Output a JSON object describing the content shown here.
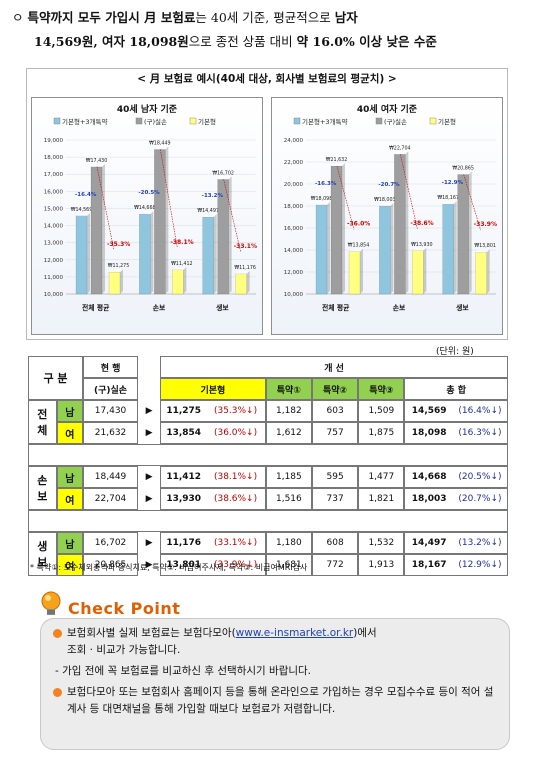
{
  "intro": {
    "bullet": "ㅇ",
    "line1_a": "특약까지 모두 가입시 ",
    "line1_b": "月 보험료",
    "line1_c": "는 40세 기준, 평균적으로 ",
    "line1_d": "남자",
    "line2_a": "14,569원, 여자 18,098원",
    "line2_b": "으로 종전 상품 대비 ",
    "line2_c": "약 16.0% 이상 낮은 수준"
  },
  "chart_section": {
    "title": "< 月 보험료 예시(40세 대상, 회사별 보험료의 평균치) >",
    "legend": [
      "기본형+3개특약",
      "(구)실손",
      "기본형"
    ],
    "colors": {
      "new_full": "#8fc6df",
      "old": "#9e9e9e",
      "basic": "#ffff80"
    }
  },
  "chart_data": [
    {
      "type": "bar",
      "title": "40세 남자 기준",
      "categories": [
        "전체 평균",
        "손보",
        "생보"
      ],
      "series": [
        {
          "name": "기본형+3개특약",
          "values": [
            14569,
            14668,
            14497
          ]
        },
        {
          "name": "(구)실손",
          "values": [
            17430,
            18449,
            16702
          ]
        },
        {
          "name": "기본형",
          "values": [
            11275,
            11412,
            11176
          ]
        }
      ],
      "value_labels": [
        [
          "₩14,569",
          "₩17,430",
          "₩11,275"
        ],
        [
          "₩14,668",
          "₩18,449",
          "₩11,412"
        ],
        [
          "₩14,497",
          "₩16,702",
          "₩11,176"
        ]
      ],
      "blue_pct": [
        "-16.4%",
        "-20.5%",
        "-13.2%"
      ],
      "red_pct": [
        "-35.3%",
        "-38.1%",
        "-33.1%"
      ],
      "ylim": [
        10000,
        19000
      ],
      "yticks": [
        "10,000",
        "11,000",
        "12,000",
        "13,000",
        "14,000",
        "15,000",
        "16,000",
        "17,000",
        "18,000",
        "19,000"
      ]
    },
    {
      "type": "bar",
      "title": "40세 여자 기준",
      "categories": [
        "전체 평균",
        "손보",
        "생보"
      ],
      "series": [
        {
          "name": "기본형+3개특약",
          "values": [
            18098,
            18003,
            18167
          ]
        },
        {
          "name": "(구)실손",
          "values": [
            21632,
            22704,
            20865
          ]
        },
        {
          "name": "기본형",
          "values": [
            13854,
            13930,
            13801
          ]
        }
      ],
      "value_labels": [
        [
          "₩18,098",
          "₩21,632",
          "₩13,854"
        ],
        [
          "₩18,003",
          "₩22,704",
          "₩13,930"
        ],
        [
          "₩18,167",
          "₩20,865",
          "₩13,801"
        ]
      ],
      "blue_pct": [
        "-16.3%",
        "-20.7%",
        "-12.9%"
      ],
      "red_pct": [
        "-36.0%",
        "-38.6%",
        "-33.9%"
      ],
      "ylim": [
        10000,
        24000
      ],
      "yticks": [
        "10,000",
        "12,000",
        "14,000",
        "16,000",
        "18,000",
        "20,000",
        "22,000",
        "24,000"
      ]
    }
  ],
  "table": {
    "unit": "(단위: 원)",
    "h_gubun": "구 분",
    "h_current": "현 행",
    "h_old": "(구)실손",
    "h_improve": "개 선",
    "h_basic": "기본형",
    "h_s1": "특약①",
    "h_s2": "특약②",
    "h_s3": "특약③",
    "h_total": "총 합",
    "arrow": "▶",
    "groups": [
      {
        "name1": "전",
        "name2": "체",
        "rows": [
          {
            "sex": "남",
            "old": "17,430",
            "basic": "11,275",
            "basic_pct": "(35.3%↓)",
            "s1": "1,182",
            "s2": "603",
            "s3": "1,509",
            "total": "14,569",
            "total_pct": "(16.4%↓)"
          },
          {
            "sex": "여",
            "old": "21,632",
            "basic": "13,854",
            "basic_pct": "(36.0%↓)",
            "s1": "1,612",
            "s2": "757",
            "s3": "1,875",
            "total": "18,098",
            "total_pct": "(16.3%↓)"
          }
        ]
      },
      {
        "name1": "손",
        "name2": "보",
        "rows": [
          {
            "sex": "남",
            "old": "18,449",
            "basic": "11,412",
            "basic_pct": "(38.1%↓)",
            "s1": "1,185",
            "s2": "595",
            "s3": "1,477",
            "total": "14,668",
            "total_pct": "(20.5%↓)"
          },
          {
            "sex": "여",
            "old": "22,704",
            "basic": "13,930",
            "basic_pct": "(38.6%↓)",
            "s1": "1,516",
            "s2": "737",
            "s3": "1,821",
            "total": "18,003",
            "total_pct": "(20.7%↓)"
          }
        ]
      },
      {
        "name1": "생",
        "name2": "보",
        "rows": [
          {
            "sex": "남",
            "old": "16,702",
            "basic": "11,176",
            "basic_pct": "(33.1%↓)",
            "s1": "1,180",
            "s2": "608",
            "s3": "1,532",
            "total": "14,497",
            "total_pct": "(13.2%↓)"
          },
          {
            "sex": "여",
            "old": "20,865",
            "basic": "13,801",
            "basic_pct": "(33.9%↓)",
            "s1": "1,681",
            "s2": "772",
            "s3": "1,913",
            "total": "18,167",
            "total_pct": "(12.9%↓)"
          }
        ]
      }
    ],
    "footnote": "* 특약①: 도수체외충격파·증식치료, 특약②: 비급여주사제, 특약③: 비급여MRI검사"
  },
  "checkpoint": {
    "title": "Check Point",
    "item1_a": "보험회사별 실제 보험료는 보험다모아(",
    "item1_link": "www.e-insmarket.or.kr",
    "item1_b": ")에서",
    "item1_c": "조회 · 비교가 가능합니다.",
    "item1_sub": "- 가입 전에 꼭 보험료를 비교하신 후 선택하시기 바랍니다.",
    "item2": "보험다모아 또는 보험회사 홈페이지 등을 통해 온라인으로 가입하는 경우 모집수수료 등이 적어 설계사 등 대면채널을 통해 가입할 때보다 보험료가 저렴합니다."
  }
}
